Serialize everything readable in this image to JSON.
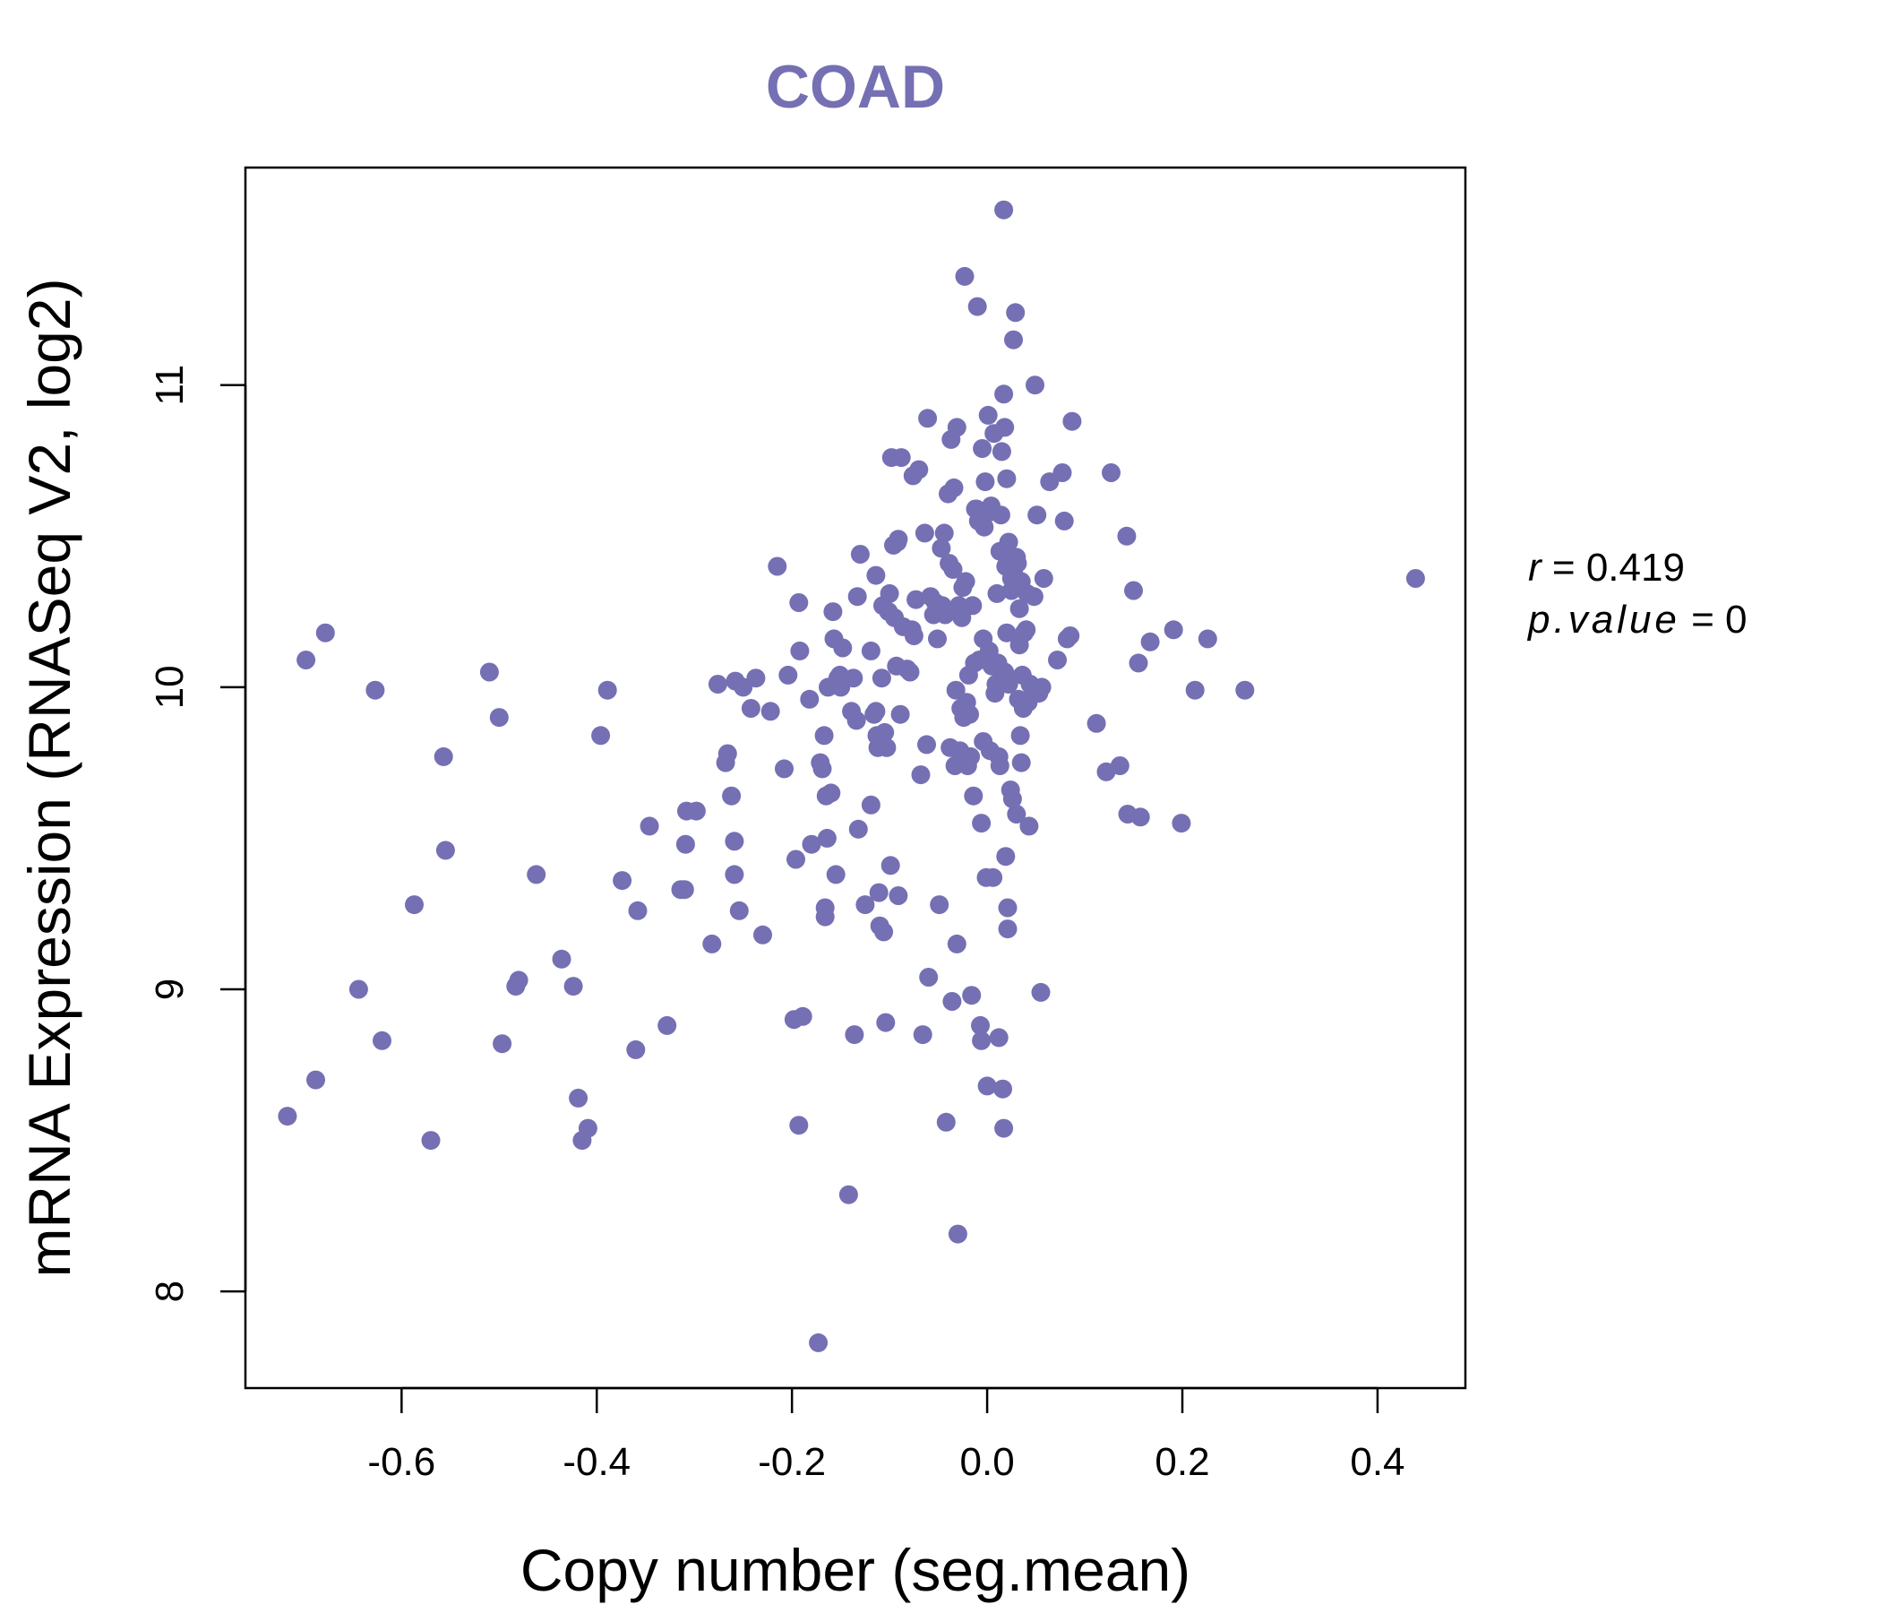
{
  "chart_data": {
    "type": "scatter",
    "title": "COAD",
    "xlabel": "Copy number (seg.mean)",
    "ylabel": "mRNA Expression (RNASeq V2, log2)",
    "xlim": [
      -0.76,
      0.49
    ],
    "ylim": [
      7.68,
      11.72
    ],
    "x_ticks": [
      -0.6,
      -0.4,
      -0.2,
      0.0,
      0.2,
      0.4
    ],
    "x_tick_labels": [
      "-0.6",
      "-0.4",
      "-0.2",
      "0.0",
      "0.2",
      "0.4"
    ],
    "y_ticks": [
      8,
      9,
      10,
      11
    ],
    "y_tick_labels": [
      "8",
      "9",
      "10",
      "11"
    ],
    "grid": false,
    "point_color": "#7570b3",
    "stats": {
      "r_symbol": "r",
      "r_value": "0.419",
      "p_symbol": "p.value",
      "p_value": "0"
    },
    "points": [
      [
        -0.717,
        8.58
      ],
      [
        -0.698,
        10.09
      ],
      [
        -0.688,
        8.7
      ],
      [
        -0.678,
        10.18
      ],
      [
        -0.627,
        9.99
      ],
      [
        -0.62,
        8.83
      ],
      [
        -0.644,
        9.0
      ],
      [
        -0.587,
        9.28
      ],
      [
        -0.57,
        8.5
      ],
      [
        -0.557,
        9.77
      ],
      [
        -0.555,
        9.46
      ],
      [
        -0.51,
        10.05
      ],
      [
        -0.5,
        9.9
      ],
      [
        -0.497,
        8.82
      ],
      [
        -0.483,
        9.01
      ],
      [
        -0.48,
        9.03
      ],
      [
        -0.462,
        9.38
      ],
      [
        -0.436,
        9.1
      ],
      [
        -0.424,
        9.01
      ],
      [
        -0.419,
        8.64
      ],
      [
        -0.415,
        8.5
      ],
      [
        -0.409,
        8.54
      ],
      [
        -0.396,
        9.84
      ],
      [
        -0.389,
        9.99
      ],
      [
        -0.374,
        9.36
      ],
      [
        -0.36,
        8.8
      ],
      [
        -0.358,
        9.26
      ],
      [
        -0.346,
        9.54
      ],
      [
        -0.328,
        8.88
      ],
      [
        -0.314,
        9.33
      ],
      [
        -0.31,
        9.33
      ],
      [
        -0.309,
        9.48
      ],
      [
        -0.308,
        9.59
      ],
      [
        -0.298,
        9.59
      ],
      [
        -0.282,
        9.15
      ],
      [
        -0.276,
        10.01
      ],
      [
        -0.268,
        9.75
      ],
      [
        -0.266,
        9.78
      ],
      [
        -0.262,
        9.64
      ],
      [
        -0.259,
        9.49
      ],
      [
        -0.259,
        9.38
      ],
      [
        -0.254,
        9.26
      ],
      [
        -0.258,
        10.02
      ],
      [
        -0.25,
        10.0
      ],
      [
        -0.242,
        9.93
      ],
      [
        -0.237,
        10.03
      ],
      [
        -0.23,
        9.18
      ],
      [
        -0.222,
        9.92
      ],
      [
        -0.215,
        10.4
      ],
      [
        -0.208,
        9.73
      ],
      [
        -0.204,
        10.04
      ],
      [
        -0.198,
        8.9
      ],
      [
        -0.196,
        9.43
      ],
      [
        -0.193,
        8.55
      ],
      [
        -0.193,
        10.28
      ],
      [
        -0.192,
        10.12
      ],
      [
        -0.189,
        8.91
      ],
      [
        -0.182,
        9.96
      ],
      [
        -0.18,
        9.48
      ],
      [
        -0.173,
        7.83
      ],
      [
        -0.171,
        9.75
      ],
      [
        -0.169,
        9.73
      ],
      [
        -0.167,
        9.84
      ],
      [
        -0.166,
        9.27
      ],
      [
        -0.166,
        9.24
      ],
      [
        -0.165,
        9.64
      ],
      [
        -0.164,
        9.5
      ],
      [
        -0.163,
        10.0
      ],
      [
        -0.16,
        9.65
      ],
      [
        -0.158,
        10.25
      ],
      [
        -0.157,
        10.16
      ],
      [
        -0.155,
        9.38
      ],
      [
        -0.153,
        10.03
      ],
      [
        -0.151,
        10.04
      ],
      [
        -0.15,
        10.0
      ],
      [
        -0.148,
        10.13
      ],
      [
        -0.142,
        8.32
      ],
      [
        -0.139,
        9.92
      ],
      [
        -0.137,
        10.03
      ],
      [
        -0.136,
        8.85
      ],
      [
        -0.134,
        9.89
      ],
      [
        -0.133,
        10.3
      ],
      [
        -0.132,
        9.53
      ],
      [
        -0.13,
        10.44
      ],
      [
        -0.125,
        9.28
      ],
      [
        -0.119,
        9.61
      ],
      [
        -0.119,
        10.12
      ],
      [
        -0.116,
        9.91
      ],
      [
        -0.114,
        10.37
      ],
      [
        -0.114,
        9.92
      ],
      [
        -0.113,
        9.84
      ],
      [
        -0.112,
        9.8
      ],
      [
        -0.111,
        9.32
      ],
      [
        -0.11,
        9.21
      ],
      [
        -0.108,
        10.03
      ],
      [
        -0.107,
        10.27
      ],
      [
        -0.106,
        9.19
      ],
      [
        -0.105,
        9.85
      ],
      [
        -0.104,
        8.89
      ],
      [
        -0.103,
        9.8
      ],
      [
        -0.101,
        10.25
      ],
      [
        -0.1,
        10.31
      ],
      [
        -0.099,
        9.41
      ],
      [
        -0.098,
        10.76
      ],
      [
        -0.096,
        10.47
      ],
      [
        -0.095,
        10.23
      ],
      [
        -0.093,
        10.07
      ],
      [
        -0.092,
        10.48
      ],
      [
        -0.091,
        10.49
      ],
      [
        -0.091,
        9.31
      ],
      [
        -0.089,
        9.91
      ],
      [
        -0.088,
        10.76
      ],
      [
        -0.086,
        10.2
      ],
      [
        -0.082,
        10.06
      ],
      [
        -0.079,
        10.05
      ],
      [
        -0.077,
        10.19
      ],
      [
        -0.076,
        10.7
      ],
      [
        -0.075,
        10.17
      ],
      [
        -0.073,
        10.29
      ],
      [
        -0.07,
        10.72
      ],
      [
        -0.068,
        9.71
      ],
      [
        -0.066,
        8.85
      ],
      [
        -0.064,
        10.51
      ],
      [
        -0.062,
        9.81
      ],
      [
        -0.061,
        10.89
      ],
      [
        -0.06,
        9.04
      ],
      [
        -0.058,
        10.3
      ],
      [
        -0.055,
        10.24
      ],
      [
        -0.053,
        10.28
      ],
      [
        -0.051,
        10.16
      ],
      [
        -0.05,
        10.27
      ],
      [
        -0.049,
        9.28
      ],
      [
        -0.047,
        10.46
      ],
      [
        -0.046,
        10.27
      ],
      [
        -0.044,
        10.51
      ],
      [
        -0.043,
        10.24
      ],
      [
        -0.042,
        8.56
      ],
      [
        -0.04,
        10.64
      ],
      [
        -0.039,
        10.41
      ],
      [
        -0.038,
        9.8
      ],
      [
        -0.037,
        10.82
      ],
      [
        -0.036,
        8.96
      ],
      [
        -0.035,
        10.39
      ],
      [
        -0.034,
        10.66
      ],
      [
        -0.033,
        9.74
      ],
      [
        -0.032,
        9.99
      ],
      [
        -0.031,
        10.86
      ],
      [
        -0.031,
        9.15
      ],
      [
        -0.03,
        8.19
      ],
      [
        -0.029,
        10.27
      ],
      [
        -0.028,
        9.79
      ],
      [
        -0.027,
        9.93
      ],
      [
        -0.026,
        10.23
      ],
      [
        -0.025,
        10.33
      ],
      [
        -0.024,
        9.9
      ],
      [
        -0.023,
        11.36
      ],
      [
        -0.022,
        10.35
      ],
      [
        -0.021,
        9.95
      ],
      [
        -0.02,
        9.74
      ],
      [
        -0.019,
        10.04
      ],
      [
        -0.018,
        9.91
      ],
      [
        -0.017,
        9.77
      ],
      [
        -0.016,
        8.98
      ],
      [
        -0.015,
        10.27
      ],
      [
        -0.014,
        9.64
      ],
      [
        -0.013,
        10.08
      ],
      [
        -0.012,
        10.59
      ],
      [
        -0.011,
        10.59
      ],
      [
        -0.01,
        11.26
      ],
      [
        -0.009,
        10.55
      ],
      [
        -0.008,
        10.09
      ],
      [
        -0.007,
        8.88
      ],
      [
        -0.006,
        9.55
      ],
      [
        -0.006,
        8.83
      ],
      [
        -0.005,
        10.79
      ],
      [
        -0.004,
        10.16
      ],
      [
        -0.004,
        9.82
      ],
      [
        -0.003,
        10.53
      ],
      [
        -0.002,
        10.68
      ],
      [
        -0.001,
        9.37
      ],
      [
        0.0,
        8.68
      ],
      [
        0.001,
        10.9
      ],
      [
        0.002,
        10.12
      ],
      [
        0.003,
        10.58
      ],
      [
        0.003,
        9.79
      ],
      [
        0.004,
        10.6
      ],
      [
        0.005,
        10.07
      ],
      [
        0.006,
        9.37
      ],
      [
        0.007,
        10.84
      ],
      [
        0.008,
        9.98
      ],
      [
        0.009,
        10.01
      ],
      [
        0.01,
        10.31
      ],
      [
        0.01,
        10.01
      ],
      [
        0.011,
        10.08
      ],
      [
        0.012,
        8.84
      ],
      [
        0.012,
        9.77
      ],
      [
        0.013,
        10.45
      ],
      [
        0.013,
        9.74
      ],
      [
        0.014,
        10.57
      ],
      [
        0.015,
        10.78
      ],
      [
        0.016,
        8.67
      ],
      [
        0.016,
        10.03
      ],
      [
        0.017,
        11.58
      ],
      [
        0.017,
        10.97
      ],
      [
        0.017,
        8.54
      ],
      [
        0.018,
        10.86
      ],
      [
        0.018,
        10.05
      ],
      [
        0.019,
        10.4
      ],
      [
        0.019,
        9.44
      ],
      [
        0.02,
        10.69
      ],
      [
        0.02,
        10.18
      ],
      [
        0.021,
        9.27
      ],
      [
        0.021,
        9.2
      ],
      [
        0.022,
        10.48
      ],
      [
        0.022,
        10.01
      ],
      [
        0.023,
        10.43
      ],
      [
        0.024,
        9.66
      ],
      [
        0.025,
        10.36
      ],
      [
        0.025,
        10.32
      ],
      [
        0.026,
        9.63
      ],
      [
        0.027,
        10.38
      ],
      [
        0.027,
        11.15
      ],
      [
        0.028,
        10.35
      ],
      [
        0.029,
        11.24
      ],
      [
        0.03,
        10.43
      ],
      [
        0.03,
        9.58
      ],
      [
        0.031,
        10.41
      ],
      [
        0.032,
        9.96
      ],
      [
        0.033,
        10.26
      ],
      [
        0.033,
        10.14
      ],
      [
        0.034,
        9.84
      ],
      [
        0.035,
        9.75
      ],
      [
        0.035,
        10.35
      ],
      [
        0.036,
        10.04
      ],
      [
        0.037,
        9.93
      ],
      [
        0.038,
        10.18
      ],
      [
        0.04,
        10.19
      ],
      [
        0.041,
        10.31
      ],
      [
        0.042,
        9.95
      ],
      [
        0.043,
        9.54
      ],
      [
        0.044,
        10.01
      ],
      [
        0.046,
        10.0
      ],
      [
        0.048,
        10.3
      ],
      [
        0.049,
        11.0
      ],
      [
        0.051,
        10.57
      ],
      [
        0.053,
        9.98
      ],
      [
        0.055,
        8.99
      ],
      [
        0.056,
        10.0
      ],
      [
        0.058,
        10.36
      ],
      [
        0.064,
        10.68
      ],
      [
        0.072,
        10.09
      ],
      [
        0.077,
        10.71
      ],
      [
        0.079,
        10.55
      ],
      [
        0.082,
        10.16
      ],
      [
        0.085,
        10.17
      ],
      [
        0.087,
        10.88
      ],
      [
        0.112,
        9.88
      ],
      [
        0.122,
        9.72
      ],
      [
        0.127,
        10.71
      ],
      [
        0.136,
        9.74
      ],
      [
        0.143,
        10.5
      ],
      [
        0.144,
        9.58
      ],
      [
        0.15,
        10.32
      ],
      [
        0.155,
        10.08
      ],
      [
        0.157,
        9.57
      ],
      [
        0.167,
        10.15
      ],
      [
        0.191,
        10.19
      ],
      [
        0.199,
        9.55
      ],
      [
        0.213,
        9.99
      ],
      [
        0.226,
        10.16
      ],
      [
        0.264,
        9.99
      ],
      [
        0.439,
        10.36
      ]
    ]
  }
}
